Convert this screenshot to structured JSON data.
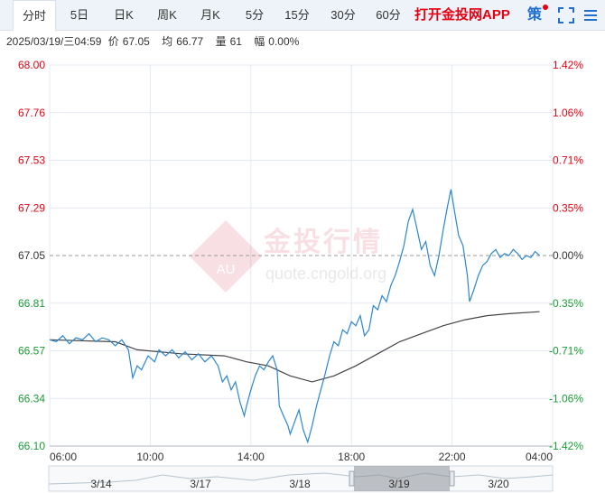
{
  "tabs": [
    {
      "label": "分时",
      "active": true
    },
    {
      "label": "5日",
      "active": false
    },
    {
      "label": "日K",
      "active": false
    },
    {
      "label": "周K",
      "active": false
    },
    {
      "label": "月K",
      "active": false
    },
    {
      "label": "5分",
      "active": false
    },
    {
      "label": "15分",
      "active": false
    },
    {
      "label": "30分",
      "active": false
    },
    {
      "label": "60分",
      "active": false
    }
  ],
  "toolbar": {
    "promo_label": "打开金投网APP",
    "strategy_label": "策",
    "fullscreen_icon": "fullscreen-icon",
    "menu_icon": "menu-icon"
  },
  "info": {
    "datetime": "2025/03/19/三04:59",
    "price_label": "价",
    "price": "67.05",
    "avg_label": "均",
    "avg": "66.77",
    "vol_label": "量",
    "vol": "61",
    "amp_label": "幅",
    "amp": "0.00%"
  },
  "watermark": {
    "cn": "金投行情",
    "url": "quote.cngold.org",
    "logo_text": "AU"
  },
  "colors": {
    "up": "#e60012",
    "down": "#1a9c36",
    "price_line": "#2b87cf",
    "avg_line": "#444444",
    "grid": "#e3e9f0",
    "ref_line": "#999999"
  },
  "navigator": {
    "dates": [
      "3/14",
      "3/17",
      "3/18",
      "3/19",
      "3/20"
    ]
  },
  "chart_data": {
    "type": "line",
    "prev_close": 67.05,
    "ylim": [
      66.1,
      68.0
    ],
    "y_ticks_left": [
      "68.00",
      "67.76",
      "67.53",
      "67.29",
      "67.05",
      "66.81",
      "66.57",
      "66.34",
      "66.10"
    ],
    "y_ticks_right": [
      "1.42%",
      "1.06%",
      "0.71%",
      "0.35%",
      "0.00%",
      "-0.35%",
      "-0.71%",
      "-1.06%",
      "-1.42%"
    ],
    "x_ticks": [
      "06:00",
      "10:00",
      "14:00",
      "18:00",
      "22:00",
      "04:00"
    ],
    "xlim_hours": [
      0,
      23
    ],
    "series": [
      {
        "name": "价",
        "points": [
          [
            0.0,
            66.63
          ],
          [
            0.3,
            66.62
          ],
          [
            0.6,
            66.65
          ],
          [
            0.9,
            66.61
          ],
          [
            1.2,
            66.64
          ],
          [
            1.5,
            66.63
          ],
          [
            1.8,
            66.66
          ],
          [
            2.1,
            66.62
          ],
          [
            2.4,
            66.64
          ],
          [
            2.7,
            66.63
          ],
          [
            3.0,
            66.6
          ],
          [
            3.3,
            66.63
          ],
          [
            3.6,
            66.58
          ],
          [
            3.8,
            66.44
          ],
          [
            4.0,
            66.5
          ],
          [
            4.2,
            66.48
          ],
          [
            4.5,
            66.55
          ],
          [
            4.8,
            66.52
          ],
          [
            5.0,
            66.58
          ],
          [
            5.3,
            66.55
          ],
          [
            5.6,
            66.58
          ],
          [
            5.9,
            66.54
          ],
          [
            6.2,
            66.57
          ],
          [
            6.5,
            66.53
          ],
          [
            6.8,
            66.56
          ],
          [
            7.1,
            66.52
          ],
          [
            7.4,
            66.55
          ],
          [
            7.7,
            66.5
          ],
          [
            7.9,
            66.42
          ],
          [
            8.1,
            66.45
          ],
          [
            8.3,
            66.38
          ],
          [
            8.5,
            66.42
          ],
          [
            8.7,
            66.32
          ],
          [
            8.9,
            66.25
          ],
          [
            9.0,
            66.3
          ],
          [
            9.2,
            66.38
          ],
          [
            9.4,
            66.45
          ],
          [
            9.6,
            66.5
          ],
          [
            9.8,
            66.48
          ],
          [
            10.0,
            66.52
          ],
          [
            10.2,
            66.55
          ],
          [
            10.4,
            66.48
          ],
          [
            10.5,
            66.3
          ],
          [
            10.7,
            66.25
          ],
          [
            10.9,
            66.2
          ],
          [
            11.0,
            66.16
          ],
          [
            11.2,
            66.22
          ],
          [
            11.4,
            66.28
          ],
          [
            11.6,
            66.18
          ],
          [
            11.8,
            66.12
          ],
          [
            12.0,
            66.2
          ],
          [
            12.2,
            66.3
          ],
          [
            12.4,
            66.38
          ],
          [
            12.6,
            66.46
          ],
          [
            12.8,
            66.55
          ],
          [
            13.0,
            66.62
          ],
          [
            13.2,
            66.6
          ],
          [
            13.4,
            66.68
          ],
          [
            13.6,
            66.66
          ],
          [
            13.8,
            66.72
          ],
          [
            14.0,
            66.7
          ],
          [
            14.2,
            66.75
          ],
          [
            14.4,
            66.65
          ],
          [
            14.6,
            66.68
          ],
          [
            14.8,
            66.8
          ],
          [
            15.0,
            66.78
          ],
          [
            15.2,
            66.85
          ],
          [
            15.4,
            66.82
          ],
          [
            15.6,
            66.9
          ],
          [
            15.8,
            66.95
          ],
          [
            16.0,
            67.02
          ],
          [
            16.2,
            67.1
          ],
          [
            16.4,
            67.22
          ],
          [
            16.6,
            67.28
          ],
          [
            16.8,
            67.18
          ],
          [
            17.0,
            67.08
          ],
          [
            17.2,
            67.12
          ],
          [
            17.4,
            67.0
          ],
          [
            17.6,
            66.95
          ],
          [
            17.8,
            67.05
          ],
          [
            18.0,
            67.18
          ],
          [
            18.2,
            67.3
          ],
          [
            18.35,
            67.38
          ],
          [
            18.5,
            67.28
          ],
          [
            18.7,
            67.15
          ],
          [
            18.9,
            67.1
          ],
          [
            19.1,
            66.95
          ],
          [
            19.2,
            66.82
          ],
          [
            19.4,
            66.88
          ],
          [
            19.6,
            66.95
          ],
          [
            19.8,
            67.0
          ],
          [
            20.0,
            67.02
          ],
          [
            20.2,
            67.06
          ],
          [
            20.4,
            67.08
          ],
          [
            20.6,
            67.04
          ],
          [
            20.8,
            67.06
          ],
          [
            21.0,
            67.05
          ],
          [
            21.2,
            67.08
          ],
          [
            21.4,
            67.06
          ],
          [
            21.6,
            67.03
          ],
          [
            21.8,
            67.05
          ],
          [
            22.0,
            67.04
          ],
          [
            22.2,
            67.07
          ],
          [
            22.4,
            67.05
          ]
        ]
      },
      {
        "name": "均",
        "points": [
          [
            0.0,
            66.63
          ],
          [
            3.0,
            66.62
          ],
          [
            4.0,
            66.58
          ],
          [
            6.0,
            66.56
          ],
          [
            8.0,
            66.55
          ],
          [
            9.0,
            66.52
          ],
          [
            10.0,
            66.5
          ],
          [
            11.0,
            66.45
          ],
          [
            12.0,
            66.42
          ],
          [
            13.0,
            66.45
          ],
          [
            14.0,
            66.5
          ],
          [
            15.0,
            66.56
          ],
          [
            16.0,
            66.62
          ],
          [
            17.0,
            66.66
          ],
          [
            18.0,
            66.7
          ],
          [
            19.0,
            66.73
          ],
          [
            20.0,
            66.75
          ],
          [
            21.0,
            66.76
          ],
          [
            22.4,
            66.77
          ]
        ]
      }
    ]
  }
}
